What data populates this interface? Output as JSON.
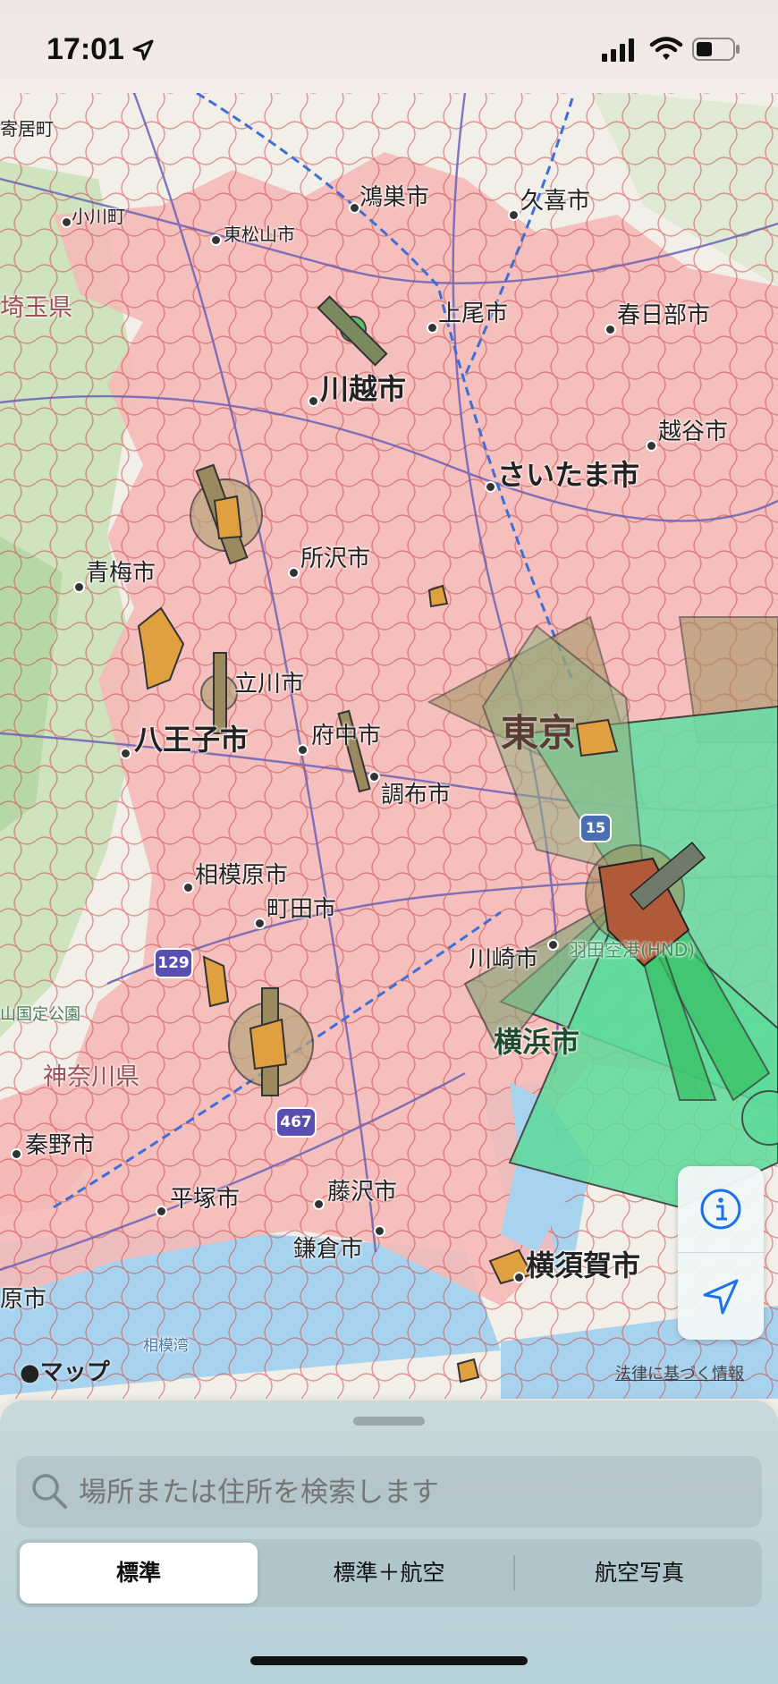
{
  "status_bar": {
    "time": "17:01"
  },
  "map": {
    "city_labels": [
      {
        "name": "寄居町",
        "cls": "sm"
      },
      {
        "name": "小川町",
        "cls": "sm"
      },
      {
        "name": "東松山市",
        "cls": "sm"
      },
      {
        "name": "鴻巣市",
        "cls": "mid"
      },
      {
        "name": "久喜市",
        "cls": "mid"
      },
      {
        "name": "上尾市",
        "cls": "mid"
      },
      {
        "name": "春日部市",
        "cls": "mid"
      },
      {
        "name": "川越市",
        "cls": "big"
      },
      {
        "name": "越谷市",
        "cls": "mid"
      },
      {
        "name": "さいたま市",
        "cls": "big"
      },
      {
        "name": "所沢市",
        "cls": "mid"
      },
      {
        "name": "青梅市",
        "cls": "mid"
      },
      {
        "name": "立川市",
        "cls": "mid"
      },
      {
        "name": "八王子市",
        "cls": "big"
      },
      {
        "name": "府中市",
        "cls": "mid"
      },
      {
        "name": "調布市",
        "cls": "mid"
      },
      {
        "name": "東京",
        "cls": "big"
      },
      {
        "name": "相模原市",
        "cls": "mid"
      },
      {
        "name": "町田市",
        "cls": "mid"
      },
      {
        "name": "川崎市",
        "cls": "mid"
      },
      {
        "name": "横浜市",
        "cls": "big"
      },
      {
        "name": "秦野市",
        "cls": "mid"
      },
      {
        "name": "平塚市",
        "cls": "mid"
      },
      {
        "name": "藤沢市",
        "cls": "mid"
      },
      {
        "name": "鎌倉市",
        "cls": "mid"
      },
      {
        "name": "横須賀市",
        "cls": "big"
      },
      {
        "name": "原市",
        "cls": "mid"
      }
    ],
    "region_labels": {
      "saitama": "埼玉県",
      "kanagawa": "神奈川県",
      "park": "山国定公園",
      "bay": "相模湾",
      "airport": "羽田空港(HND)"
    },
    "shields": {
      "r129": "129",
      "r467": "467",
      "r15": "15"
    },
    "attribution": "マップ",
    "legal_link": "法律に基づく情報"
  },
  "controls": {
    "info_icon": "info-icon",
    "location_icon": "location-arrow-icon"
  },
  "search": {
    "placeholder": "場所または住所を検索します"
  },
  "map_types": {
    "standard": "標準",
    "aviation": "標準＋航空",
    "satellite": "航空写真",
    "selected": "標準"
  }
}
